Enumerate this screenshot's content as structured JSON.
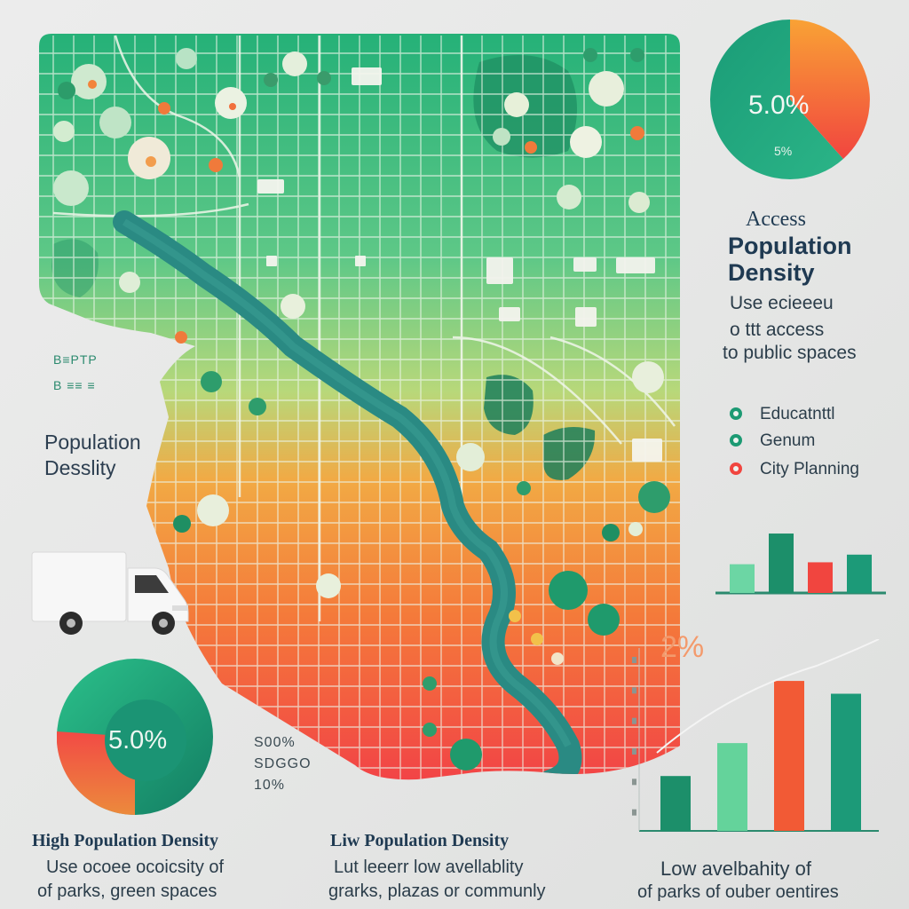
{
  "colors": {
    "green": "#21a77a",
    "teal": "#1c8f72",
    "orange": "#f5a030",
    "red": "#f1453f",
    "river": "#2a8a83"
  },
  "top_pie": {
    "value_label": "5.0%",
    "small_label": "5%"
  },
  "right_heading": {
    "line1": "Access",
    "line2": "Population",
    "line3": "Density"
  },
  "right_desc": {
    "line1": "Use ecieeeu",
    "line2": "o ttt access",
    "line3": "to public spaces"
  },
  "legend": [
    {
      "label": "Educatnttl",
      "color": "#1c9a73"
    },
    {
      "label": "Genum",
      "color": "#1c9a73"
    },
    {
      "label": "City Planning",
      "color": "#f1453f"
    }
  ],
  "left_label": {
    "line1": "Population",
    "line2": "Desslity"
  },
  "left_small": {
    "line1": "B≡PTP",
    "line2": "B ≡≡ ≡"
  },
  "bottom_pie": {
    "value_label": "5.0%"
  },
  "bottom_pie_stats": [
    "S00%",
    "SDGGO",
    "10%"
  ],
  "chart_data": [
    {
      "type": "bar",
      "values": [
        0.3,
        0.62,
        0.32,
        0.4
      ],
      "colors": [
        "#6cd6a4",
        "#1c8f6a",
        "#f1453f",
        "#1c9a78"
      ]
    },
    {
      "type": "bar",
      "percent_label": "2%",
      "values": [
        0.3,
        0.48,
        0.82,
        0.75
      ],
      "colors": [
        "#1c8f6a",
        "#64d39b",
        "#f25a35",
        "#1c9a78"
      ]
    }
  ],
  "captions": [
    {
      "title": "High Population Density",
      "line1": "Use ocoee ocoicsity of",
      "line2": "of parks, green spaces"
    },
    {
      "title": "Liw Population Density",
      "line1": "Lut leeerr low avellablity",
      "line2": "grarks, plazas or communly"
    },
    {
      "title": "",
      "line1": "Low avelbahity of",
      "line2": "of parks of ouber oentires"
    }
  ]
}
